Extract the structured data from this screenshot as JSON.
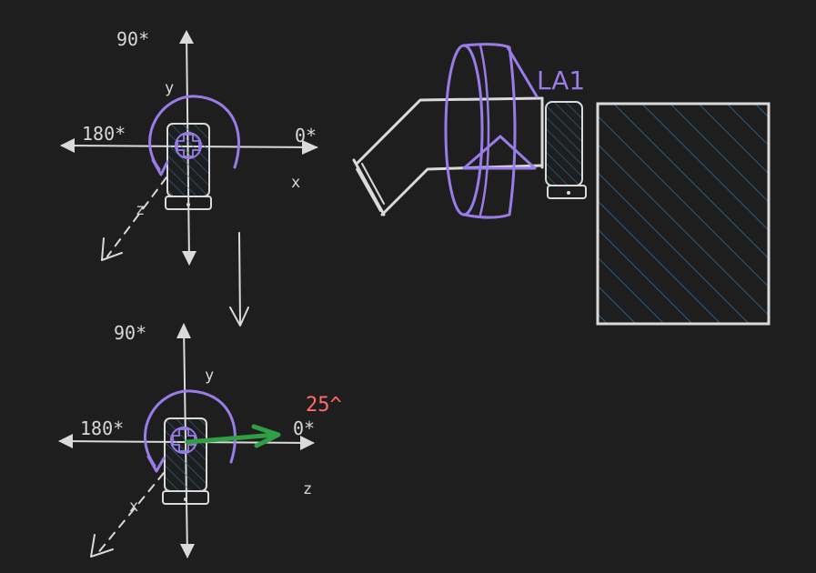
{
  "colors": {
    "background": "#1e1e1e",
    "line": "#dadada",
    "purple": "#9a7ce8",
    "green": "#2f9e44",
    "red": "#ff6b6b",
    "hatch": "#2a6d9c"
  },
  "top_diagram": {
    "label_90": "90*",
    "label_180": "180*",
    "label_0": "0*",
    "axis_y": "y",
    "axis_x": "x",
    "axis_z": "z"
  },
  "bottom_diagram": {
    "label_90": "90*",
    "label_180": "180*",
    "label_0": "0*",
    "axis_y": "y",
    "axis_x": "x",
    "axis_z": "z",
    "angle_label": "25^"
  },
  "assembly": {
    "actuator_label": "LA1"
  }
}
